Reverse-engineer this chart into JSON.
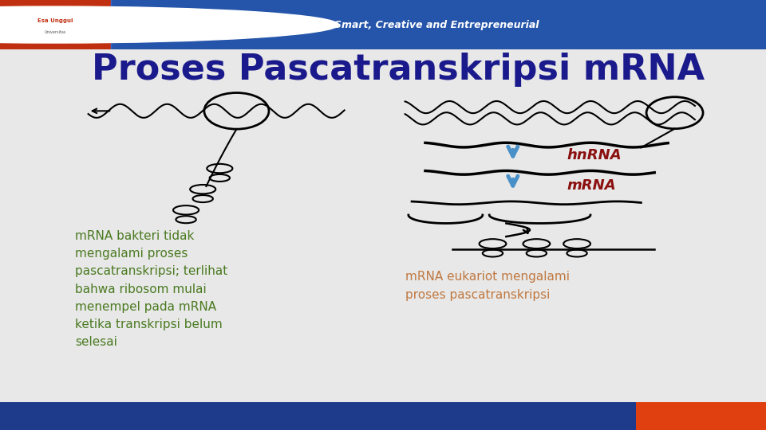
{
  "title": "Proses Pascatranskripsi mRNA",
  "title_color": "#1a1a8c",
  "title_fontsize": 32,
  "bg_color": "#e8e8e8",
  "slide_bg": "#ffffff",
  "header_text": "Smart, Creative and Entrepreneurial",
  "left_text": "mRNA bakteri tidak\nmengalami proses\npascatranskripsi; terlihat\nbahwa ribosom mulai\nmenempel pada mRNA\nketika transkripsi belum\nselesai",
  "left_text_color": "#4a7a20",
  "right_label1": "hnRNA",
  "right_label2": "mRNA",
  "right_label1_color": "#8b1010",
  "right_label2_color": "#8b1010",
  "arrow_color": "#4a90c8",
  "bottom_right_text": "mRNA eukariot mengalami\nproses pascatranskripsi",
  "bottom_right_color": "#c07840"
}
